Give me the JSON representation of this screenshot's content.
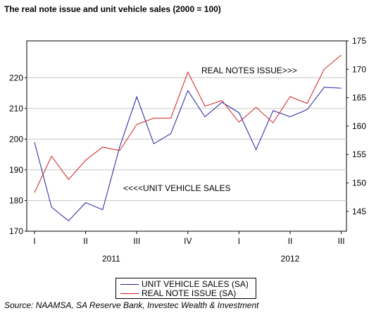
{
  "title": "The real note issue and unit vehicle sales (2000 = 100)",
  "source": "Source: NAAMSA, SA Reserve Bank, Investec Wealth & Investment",
  "colors": {
    "vehicle": "#1f1f9f",
    "notes": "#d11f1f",
    "grid": "#c8c8c8",
    "axis": "#000000"
  },
  "chart_data": {
    "type": "line",
    "x_quarter_labels": [
      "I",
      "II",
      "III",
      "IV",
      "I",
      "II",
      "III"
    ],
    "x_year_labels": [
      "2011",
      "2012"
    ],
    "left_axis": {
      "ylim": [
        170,
        232
      ],
      "ticks": [
        170,
        180,
        190,
        200,
        210,
        220
      ]
    },
    "right_axis": {
      "ylim": [
        141.5,
        175
      ],
      "ticks": [
        145,
        150,
        155,
        160,
        165,
        170,
        175
      ]
    },
    "series": [
      {
        "name": "UNIT VEHICLE SALES (SA)",
        "axis": "left",
        "values": [
          199.0,
          177.8,
          173.4,
          179.3,
          177.0,
          197.5,
          213.8,
          198.5,
          201.8,
          215.8,
          207.3,
          212.0,
          208.6,
          196.6,
          209.3,
          207.3,
          209.6,
          216.9,
          216.6
        ]
      },
      {
        "name": "REAL NOTE ISSUE (SA)",
        "axis": "right",
        "values": [
          148.3,
          154.7,
          150.6,
          154.0,
          156.3,
          155.7,
          160.3,
          161.4,
          161.4,
          169.5,
          163.5,
          164.5,
          160.7,
          163.3,
          160.6,
          165.2,
          164.0,
          170.0,
          172.5
        ]
      }
    ],
    "annotations": [
      "REAL NOTES ISSUE>>>",
      "<<<<UNIT VEHICLE SALES"
    ]
  }
}
